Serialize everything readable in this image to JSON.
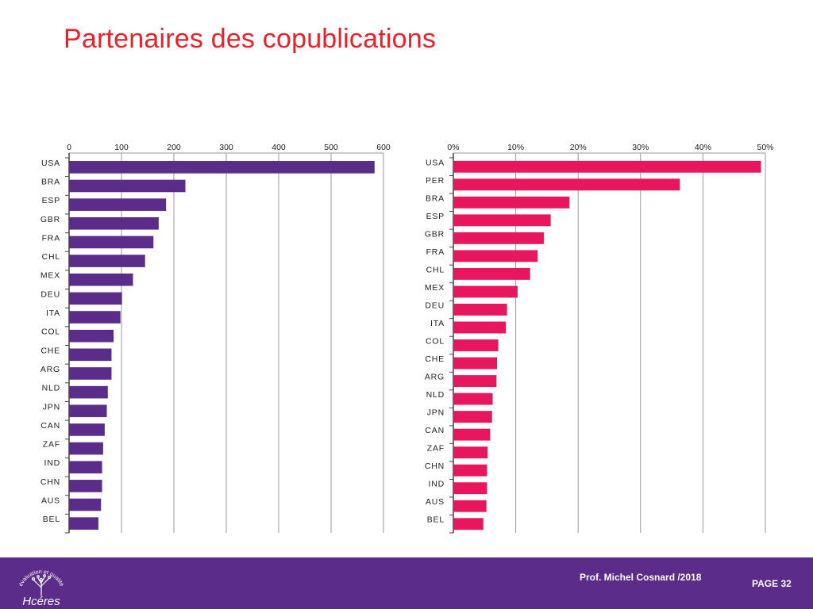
{
  "slide": {
    "title": "Partenaires des copublications"
  },
  "chart_data": [
    {
      "type": "bar",
      "orientation": "horizontal",
      "categories": [
        "USA",
        "BRA",
        "ESP",
        "GBR",
        "FRA",
        "CHL",
        "MEX",
        "DEU",
        "ITA",
        "COL",
        "CHE",
        "ARG",
        "NLD",
        "JPN",
        "CAN",
        "ZAF",
        "IND",
        "CHN",
        "AUS",
        "BEL"
      ],
      "values": [
        583,
        222,
        185,
        171,
        161,
        145,
        122,
        101,
        98,
        85,
        81,
        81,
        74,
        72,
        68,
        65,
        63,
        63,
        61,
        56
      ],
      "xticks": [
        "0",
        "100",
        "200",
        "300",
        "400",
        "500",
        "600"
      ],
      "xlim": [
        0,
        600
      ],
      "axis_position": "top",
      "grid": true,
      "color": "#5b2c8a"
    },
    {
      "type": "bar",
      "orientation": "horizontal",
      "categories": [
        "USA",
        "PER",
        "BRA",
        "ESP",
        "GBR",
        "FRA",
        "CHL",
        "MEX",
        "DEU",
        "ITA",
        "COL",
        "CHE",
        "ARG",
        "NLD",
        "JPN",
        "CAN",
        "ZAF",
        "CHN",
        "IND",
        "AUS",
        "BEL"
      ],
      "values": [
        49.3,
        36.3,
        18.6,
        15.6,
        14.5,
        13.5,
        12.3,
        10.3,
        8.6,
        8.4,
        7.2,
        7.0,
        6.9,
        6.3,
        6.2,
        5.9,
        5.5,
        5.4,
        5.4,
        5.3,
        4.8
      ],
      "xticks": [
        "0%",
        "10%",
        "20%",
        "30%",
        "40%",
        "50%"
      ],
      "xlim": [
        0,
        50
      ],
      "unit": "%",
      "axis_position": "top",
      "grid": true,
      "color": "#e8175d"
    }
  ],
  "footer": {
    "logo_arc_text": "évaluation et qualité",
    "logo_word": "Hcéres",
    "author": "Prof. Michel Cosnard /2018",
    "page_label": "PAGE 32",
    "background_color": "#5b2c8a"
  }
}
